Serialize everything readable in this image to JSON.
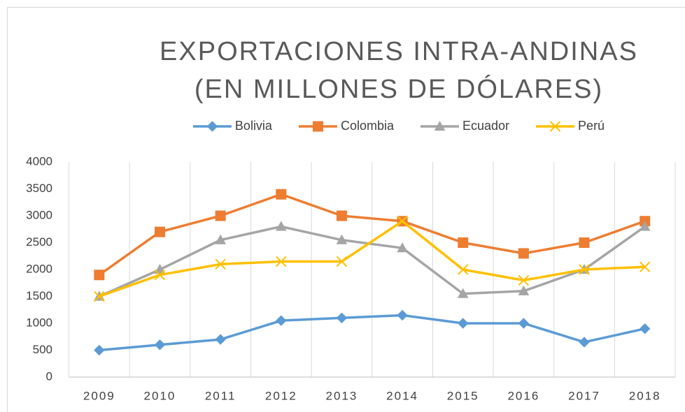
{
  "chart_data": {
    "type": "line",
    "title": [
      "EXPORTACIONES INTRA-ANDINAS",
      "(EN MILLONES DE DÓLARES)"
    ],
    "categories": [
      "2009",
      "2010",
      "2011",
      "2012",
      "2013",
      "2014",
      "2015",
      "2016",
      "2017",
      "2018"
    ],
    "series": [
      {
        "name": "Bolivia",
        "color": "#5b9bd5",
        "marker": "diamond",
        "values": [
          500,
          600,
          700,
          1050,
          1100,
          1150,
          1000,
          1000,
          650,
          900
        ]
      },
      {
        "name": "Colombia",
        "color": "#ed7d31",
        "marker": "square",
        "values": [
          1900,
          2700,
          3000,
          3400,
          3000,
          2900,
          2500,
          2300,
          2500,
          2900
        ]
      },
      {
        "name": "Ecuador",
        "color": "#a5a5a5",
        "marker": "triangle",
        "values": [
          1500,
          2000,
          2550,
          2800,
          2550,
          2400,
          1550,
          1600,
          2000,
          2800
        ]
      },
      {
        "name": "Perú",
        "color": "#ffc000",
        "marker": "x",
        "values": [
          1500,
          1900,
          2100,
          2150,
          2150,
          2900,
          2000,
          1800,
          2000,
          2050
        ]
      }
    ],
    "ylim": [
      0,
      4000
    ],
    "yticks": [
      0,
      500,
      1000,
      1500,
      2000,
      2500,
      3000,
      3500,
      4000
    ],
    "grid": "vertical",
    "legend": "top"
  }
}
